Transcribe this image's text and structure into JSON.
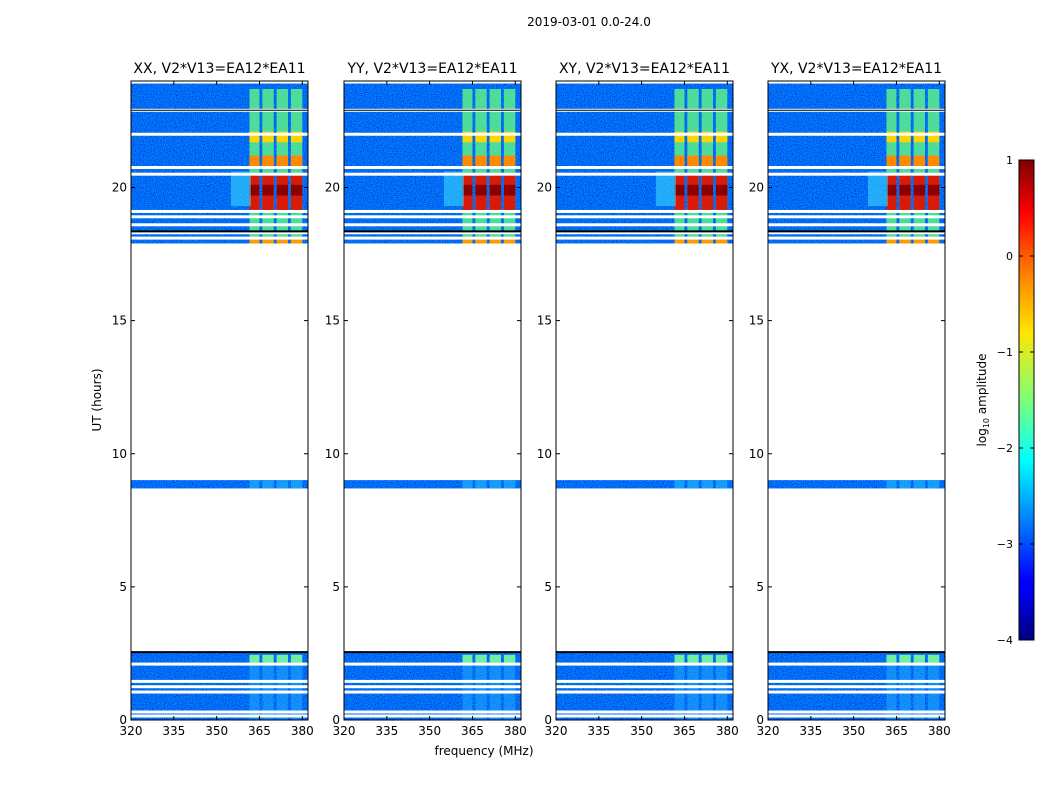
{
  "figure": {
    "suptitle": "2019-03-01 0.0-24.0",
    "xlabel": "frequency (MHz)",
    "ylabel": "UT (hours)"
  },
  "chart_data": {
    "type": "heatmap",
    "title": "2019-03-01 0.0-24.0",
    "xlabel": "frequency (MHz)",
    "ylabel": "UT (hours)",
    "xlim": [
      320,
      382
    ],
    "ylim": [
      0,
      24
    ],
    "xticks": [
      "320",
      "335",
      "350",
      "365",
      "380"
    ],
    "xtick_values": [
      320,
      335,
      350,
      365,
      380
    ],
    "yticks": [
      "0",
      "5",
      "10",
      "15",
      "20"
    ],
    "ytick_values": [
      0,
      5,
      10,
      15,
      20
    ],
    "panels": [
      {
        "title": "XX, V2*V13=EA12*EA11"
      },
      {
        "title": "YY, V2*V13=EA12*EA11"
      },
      {
        "title": "XY, V2*V13=EA12*EA11"
      },
      {
        "title": "YX, V2*V13=EA12*EA11"
      }
    ],
    "data_blocks_hours": [
      {
        "start": 0.0,
        "end": 2.55
      },
      {
        "start": 8.7,
        "end": 9.0
      },
      {
        "start": 17.9,
        "end": 23.9
      }
    ],
    "gap_lines_hours": [
      0.15,
      0.3,
      1.05,
      1.25,
      1.45,
      2.1,
      18.1,
      18.3,
      18.6,
      18.9,
      19.1,
      20.5,
      20.75,
      22.0,
      22.9
    ],
    "rfi_channels_mhz": [
      [
        361.5,
        365
      ],
      [
        366,
        370
      ],
      [
        371,
        375
      ],
      [
        376,
        380
      ]
    ],
    "strong_rfi_hours": [
      [
        19.1,
        20.5
      ],
      [
        20.8,
        22.8
      ],
      [
        17.95,
        18.1
      ]
    ],
    "colorbar": {
      "label": "log",
      "label_sub": "10",
      "label_rest": " amplitude",
      "ticks": [
        "1",
        "0",
        "−1",
        "−2",
        "−3",
        "−4"
      ],
      "tick_values": [
        1,
        0,
        -1,
        -2,
        -3,
        -4
      ],
      "range": [
        -4,
        1
      ],
      "colormap": "jet"
    }
  }
}
